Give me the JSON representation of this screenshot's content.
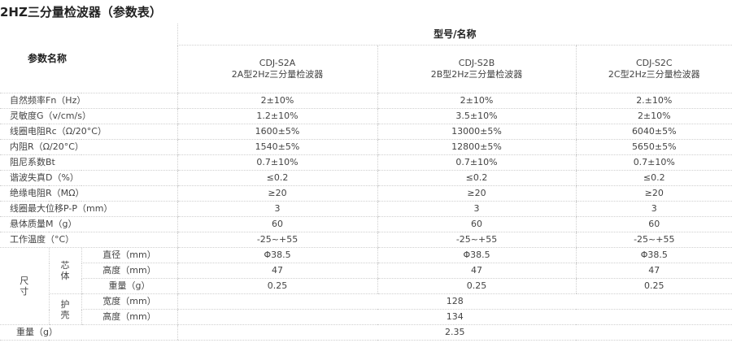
{
  "title": "2HZ三分量检波器（参数表）",
  "header": {
    "param_label": "参数名称",
    "group_label": "型号/名称",
    "models": [
      {
        "code": "CDJ-S2A",
        "name": "2A型2Hz三分量检波器"
      },
      {
        "code": "CDJ-S2B",
        "name": "2B型2Hz三分量检波器"
      },
      {
        "code": "CDJ-S2C",
        "name": "2C型2Hz三分量检波器"
      }
    ]
  },
  "rows": [
    {
      "label": "自然频率Fn（Hz）",
      "values": [
        "2±10%",
        "2±10%",
        "2.±10%"
      ]
    },
    {
      "label": "灵敏度G（v/cm/s）",
      "values": [
        "1.2±10%",
        "3.5±10%",
        "2±10%"
      ]
    },
    {
      "label": "线圈电阻Rc（Ω/20°C）",
      "values": [
        "1600±5%",
        "13000±5%",
        "6040±5%"
      ]
    },
    {
      "label": "内阻R（Ω/20°C）",
      "values": [
        "1540±5%",
        "12800±5%",
        "5650±5%"
      ]
    },
    {
      "label": "阻尼系数Bt",
      "values": [
        "0.7±10%",
        "0.7±10%",
        "0.7±10%"
      ]
    },
    {
      "label": "谐波失真D（%）",
      "values": [
        "≤0.2",
        "≤0.2",
        "≤0.2"
      ]
    },
    {
      "label": "绝缘电阻R（MΩ）",
      "values": [
        "≥20",
        "≥20",
        "≥20"
      ]
    },
    {
      "label": "线圈最大位移P-P（mm）",
      "values": [
        "3",
        "3",
        "3"
      ]
    },
    {
      "label": "悬体质量M（g）",
      "values": [
        "60",
        "60",
        "60"
      ]
    },
    {
      "label": "工作温度（°C）",
      "values": [
        "-25~+55",
        "-25~+55",
        "-25~+55"
      ]
    }
  ],
  "size": {
    "label": "尺寸",
    "core": {
      "label": "芯体",
      "rows": [
        {
          "label": "直径（mm）",
          "values": [
            "Φ38.5",
            "Φ38.5",
            "Φ38.5"
          ]
        },
        {
          "label": "高度（mm）",
          "values": [
            "47",
            "47",
            "47"
          ]
        },
        {
          "label": "重量（g）",
          "values": [
            "0.25",
            "0.25",
            "0.25"
          ]
        }
      ]
    },
    "shell": {
      "label": "护壳",
      "rows": [
        {
          "label": "宽度（mm）",
          "value": "128"
        },
        {
          "label": "高度（mm）",
          "value": "134"
        }
      ]
    }
  },
  "weight": {
    "label": "重量（g）",
    "value": "2.35"
  }
}
